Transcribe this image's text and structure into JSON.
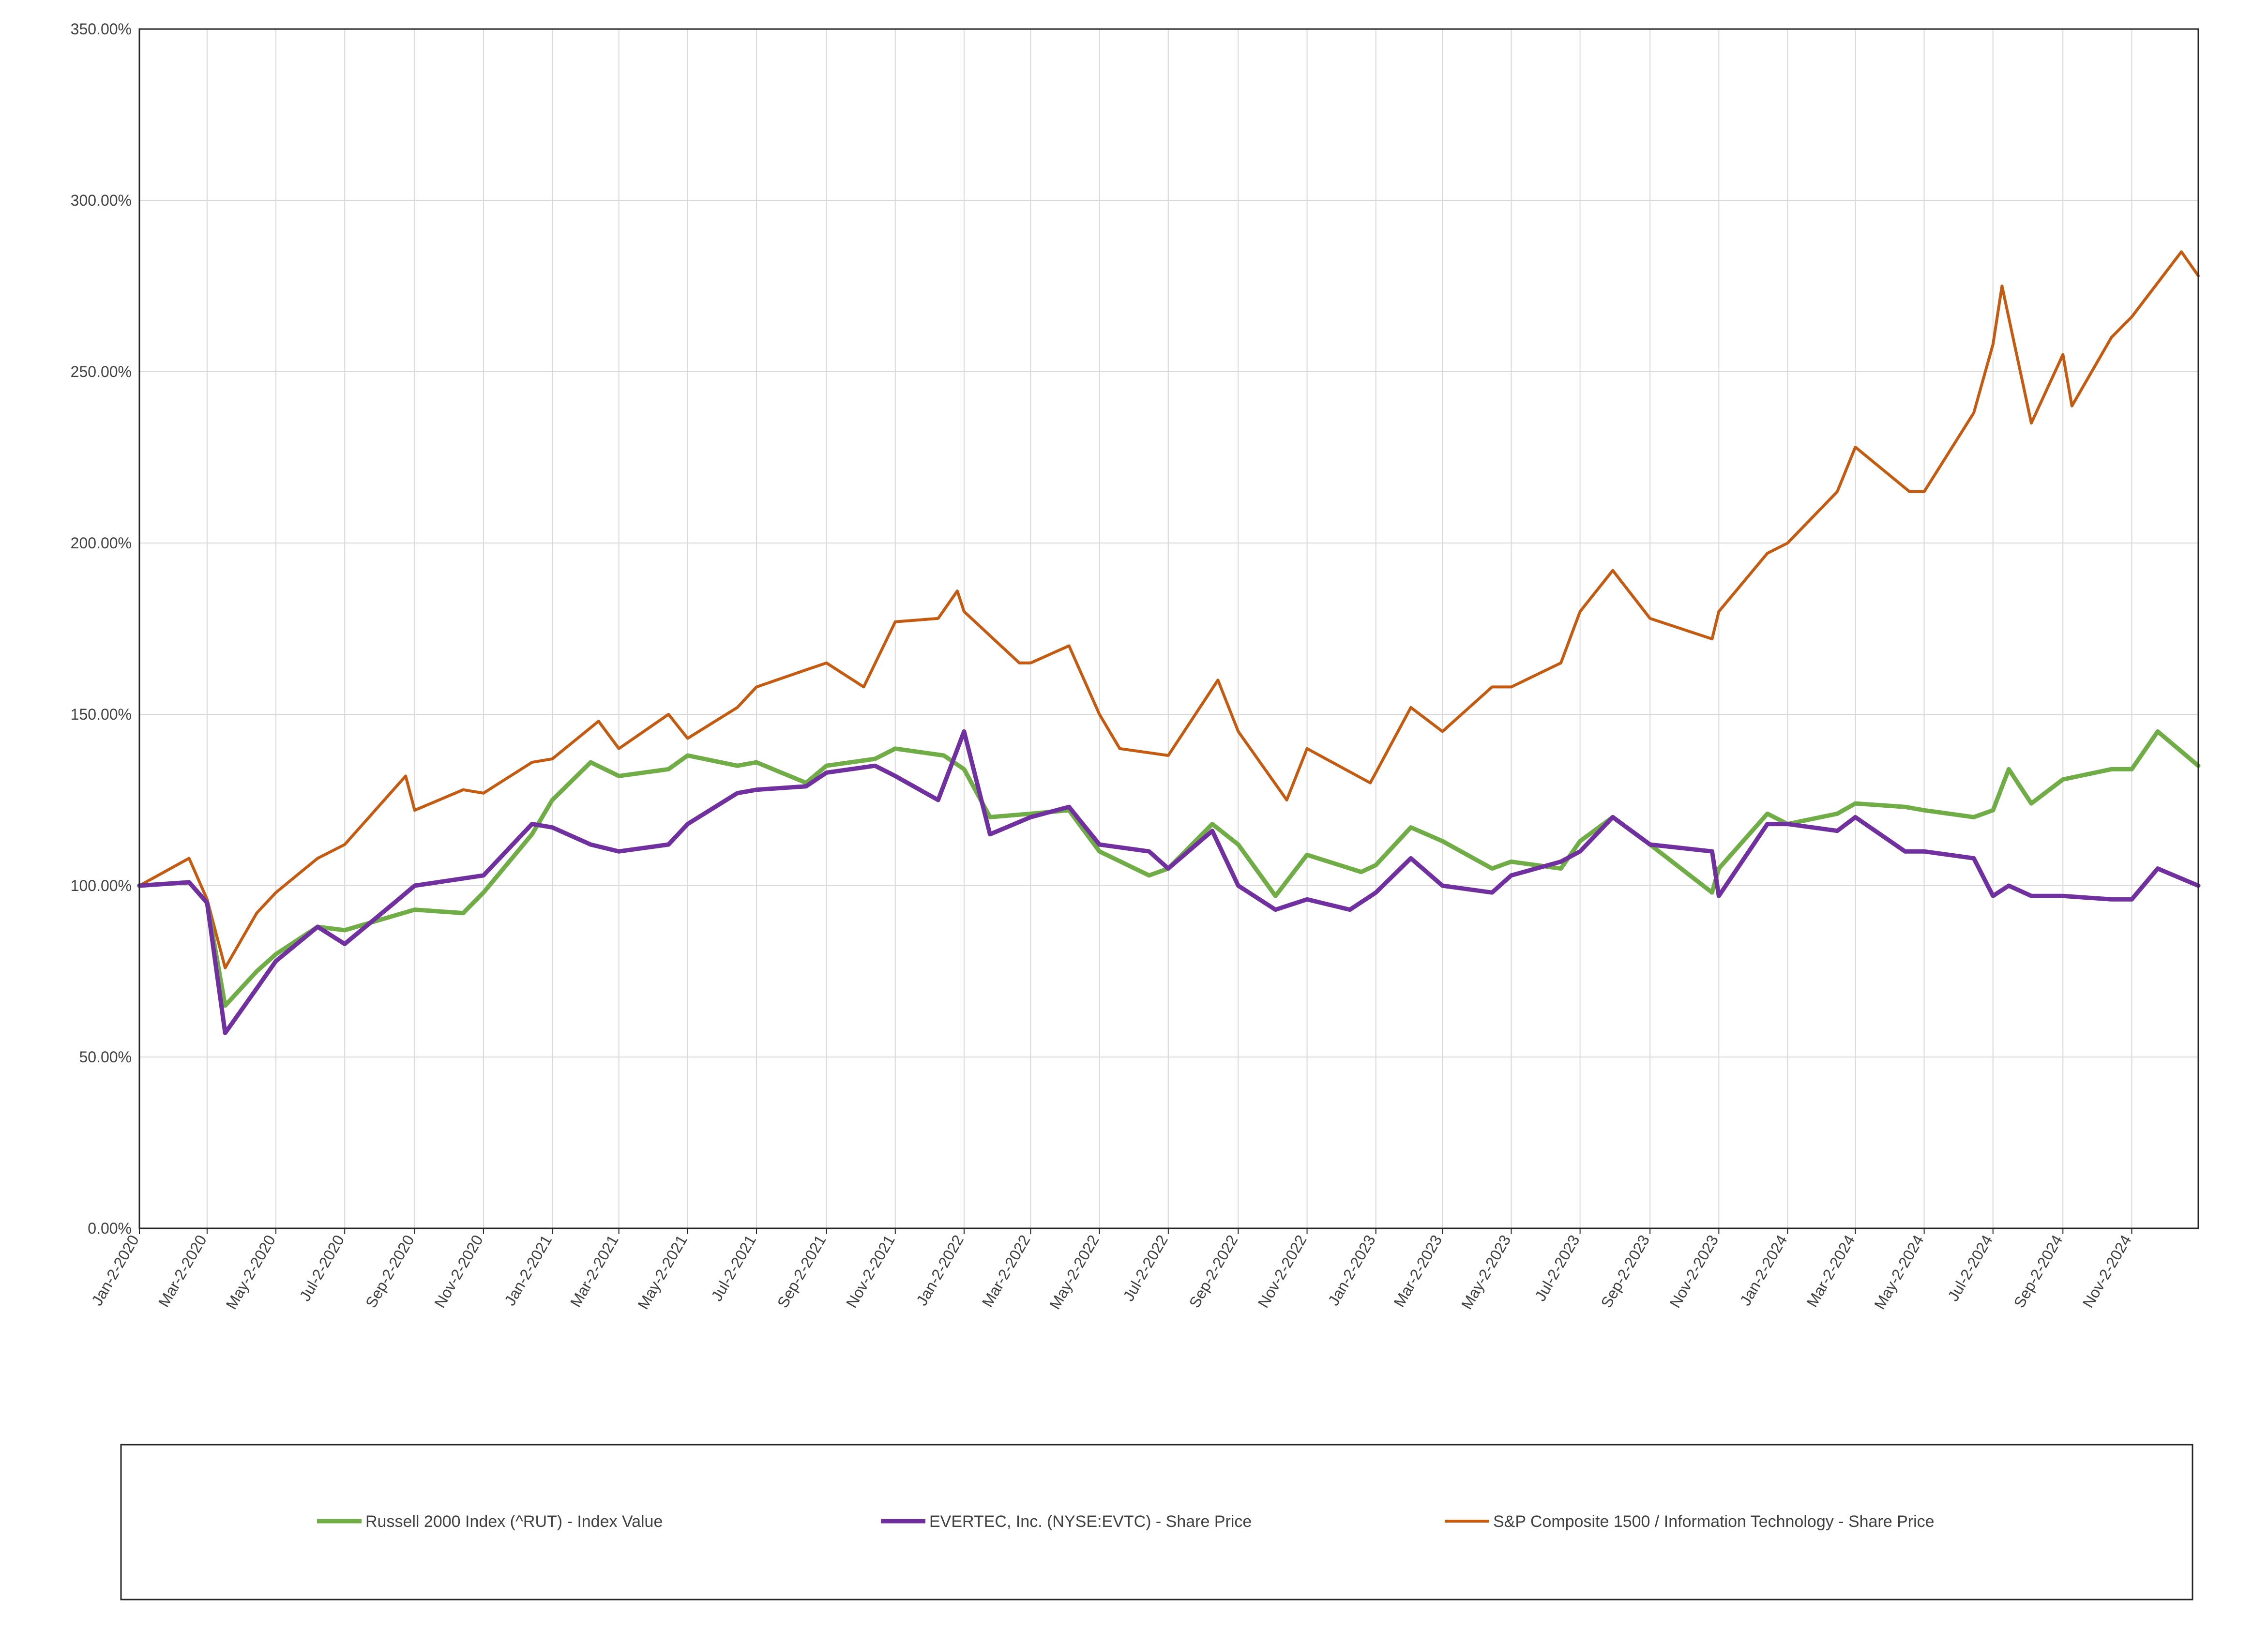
{
  "chart_data": {
    "type": "line",
    "title": "",
    "xlabel": "",
    "ylabel": "",
    "ylim": [
      0,
      350
    ],
    "y_ticks": [
      "0.00%",
      "50.00%",
      "100.00%",
      "150.00%",
      "200.00%",
      "250.00%",
      "300.00%",
      "350.00%"
    ],
    "x_tick_labels": [
      "Jan-2-2020",
      "Mar-2-2020",
      "May-2-2020",
      "Jul-2-2020",
      "Sep-2-2020",
      "Nov-2-2020",
      "Jan-2-2021",
      "Mar-2-2021",
      "May-2-2021",
      "Jul-2-2021",
      "Sep-2-2021",
      "Nov-2-2021",
      "Jan-2-2022",
      "Mar-2-2022",
      "May-2-2022",
      "Jul-2-2022",
      "Sep-2-2022",
      "Nov-2-2022",
      "Jan-2-2023",
      "Mar-2-2023",
      "May-2-2023",
      "Jul-2-2023",
      "Sep-2-2023",
      "Nov-2-2023",
      "Jan-2-2024",
      "Mar-2-2024",
      "May-2-2024",
      "Jul-2-2024",
      "Sep-2-2024",
      "Nov-2-2024"
    ],
    "x_ticks": [
      "2020-01-02",
      "2020-03-02",
      "2020-05-02",
      "2020-07-02",
      "2020-09-02",
      "2020-11-02",
      "2021-01-02",
      "2021-03-02",
      "2021-05-02",
      "2021-07-02",
      "2021-09-02",
      "2021-11-02",
      "2022-01-02",
      "2022-03-02",
      "2022-05-02",
      "2022-07-02",
      "2022-09-02",
      "2022-11-02",
      "2023-01-02",
      "2023-03-02",
      "2023-05-02",
      "2023-07-02",
      "2023-09-02",
      "2023-11-02",
      "2024-01-02",
      "2024-03-02",
      "2024-05-02",
      "2024-07-02",
      "2024-09-02",
      "2024-11-02"
    ],
    "xlim": [
      "2020-01-02",
      "2024-12-31"
    ],
    "grid": true,
    "legend_position": "bottom",
    "series": [
      {
        "name": "Russell 2000 Index (^RUT) - Index Value",
        "color": "#70AD47",
        "x": [
          "2020-01-02",
          "2020-02-15",
          "2020-03-02",
          "2020-03-18",
          "2020-04-15",
          "2020-05-02",
          "2020-06-08",
          "2020-07-02",
          "2020-09-02",
          "2020-10-15",
          "2020-11-02",
          "2020-12-15",
          "2021-01-02",
          "2021-02-05",
          "2021-03-02",
          "2021-04-15",
          "2021-05-02",
          "2021-06-15",
          "2021-07-02",
          "2021-08-15",
          "2021-09-02",
          "2021-10-15",
          "2021-11-02",
          "2021-12-15",
          "2022-01-02",
          "2022-01-25",
          "2022-03-02",
          "2022-04-05",
          "2022-05-02",
          "2022-06-15",
          "2022-07-02",
          "2022-08-10",
          "2022-09-02",
          "2022-10-05",
          "2022-11-02",
          "2022-12-20",
          "2023-01-02",
          "2023-02-02",
          "2023-03-02",
          "2023-04-15",
          "2023-05-02",
          "2023-06-15",
          "2023-07-02",
          "2023-07-31",
          "2023-09-02",
          "2023-10-27",
          "2023-11-02",
          "2023-12-15",
          "2024-01-02",
          "2024-02-15",
          "2024-03-02",
          "2024-04-15",
          "2024-05-02",
          "2024-06-15",
          "2024-07-02",
          "2024-07-16",
          "2024-08-05",
          "2024-09-02",
          "2024-10-15",
          "2024-11-02",
          "2024-11-25",
          "2024-12-31"
        ],
        "values": [
          100,
          101,
          95,
          65,
          75,
          80,
          88,
          87,
          93,
          92,
          98,
          115,
          125,
          136,
          132,
          134,
          138,
          135,
          136,
          130,
          135,
          137,
          140,
          138,
          134,
          120,
          121,
          122,
          110,
          103,
          105,
          118,
          112,
          97,
          109,
          104,
          106,
          117,
          113,
          105,
          107,
          105,
          113,
          120,
          112,
          98,
          105,
          121,
          118,
          121,
          124,
          123,
          122,
          120,
          122,
          134,
          124,
          131,
          134,
          134,
          145,
          135
        ]
      },
      {
        "name": "EVERTEC, Inc. (NYSE:EVTC) - Share Price",
        "color": "#7030A0",
        "x": [
          "2020-01-02",
          "2020-02-15",
          "2020-03-02",
          "2020-03-18",
          "2020-04-15",
          "2020-05-02",
          "2020-06-08",
          "2020-07-02",
          "2020-08-15",
          "2020-09-02",
          "2020-11-02",
          "2020-12-15",
          "2021-01-02",
          "2021-02-05",
          "2021-03-02",
          "2021-04-15",
          "2021-05-02",
          "2021-06-15",
          "2021-07-02",
          "2021-08-15",
          "2021-09-02",
          "2021-10-15",
          "2021-11-02",
          "2021-12-10",
          "2022-01-02",
          "2022-01-25",
          "2022-03-02",
          "2022-04-05",
          "2022-05-02",
          "2022-06-15",
          "2022-07-02",
          "2022-08-10",
          "2022-09-02",
          "2022-10-05",
          "2022-11-02",
          "2022-12-10",
          "2023-01-02",
          "2023-02-02",
          "2023-03-02",
          "2023-04-15",
          "2023-05-02",
          "2023-06-15",
          "2023-07-02",
          "2023-07-31",
          "2023-09-02",
          "2023-10-27",
          "2023-11-02",
          "2023-12-15",
          "2024-01-02",
          "2024-02-15",
          "2024-03-02",
          "2024-04-15",
          "2024-05-02",
          "2024-06-15",
          "2024-07-02",
          "2024-07-16",
          "2024-08-05",
          "2024-09-02",
          "2024-10-15",
          "2024-11-02",
          "2024-11-25",
          "2024-12-31"
        ],
        "values": [
          100,
          101,
          95,
          57,
          70,
          78,
          88,
          83,
          95,
          100,
          103,
          118,
          117,
          112,
          110,
          112,
          118,
          127,
          128,
          129,
          133,
          135,
          132,
          125,
          145,
          115,
          120,
          123,
          112,
          110,
          105,
          116,
          100,
          93,
          96,
          93,
          98,
          108,
          100,
          98,
          103,
          107,
          110,
          120,
          112,
          110,
          97,
          118,
          118,
          116,
          120,
          110,
          110,
          108,
          97,
          100,
          97,
          97,
          96,
          96,
          105,
          100
        ]
      },
      {
        "name": "S&P Composite 1500 / Information Technology - Share Price",
        "color": "#C55A11",
        "x": [
          "2020-01-02",
          "2020-02-15",
          "2020-03-02",
          "2020-03-18",
          "2020-04-15",
          "2020-05-02",
          "2020-06-08",
          "2020-07-02",
          "2020-08-25",
          "2020-09-02",
          "2020-10-15",
          "2020-11-02",
          "2020-12-15",
          "2021-01-02",
          "2021-02-12",
          "2021-03-02",
          "2021-04-15",
          "2021-05-02",
          "2021-06-15",
          "2021-07-02",
          "2021-08-15",
          "2021-09-02",
          "2021-10-05",
          "2021-11-02",
          "2021-12-10",
          "2021-12-27",
          "2022-01-02",
          "2022-02-20",
          "2022-03-02",
          "2022-04-05",
          "2022-05-02",
          "2022-05-20",
          "2022-07-02",
          "2022-08-15",
          "2022-09-02",
          "2022-10-15",
          "2022-11-02",
          "2022-12-28",
          "2023-01-02",
          "2023-02-02",
          "2023-03-02",
          "2023-04-15",
          "2023-05-02",
          "2023-06-15",
          "2023-07-02",
          "2023-07-31",
          "2023-09-02",
          "2023-10-27",
          "2023-11-02",
          "2023-12-15",
          "2024-01-02",
          "2024-02-15",
          "2024-03-02",
          "2024-04-19",
          "2024-05-02",
          "2024-06-15",
          "2024-07-02",
          "2024-07-10",
          "2024-08-05",
          "2024-09-02",
          "2024-09-10",
          "2024-10-15",
          "2024-11-02",
          "2024-12-16",
          "2024-12-31"
        ],
        "values": [
          100,
          108,
          96,
          76,
          92,
          98,
          108,
          112,
          132,
          122,
          128,
          127,
          136,
          137,
          148,
          140,
          150,
          143,
          152,
          158,
          163,
          165,
          158,
          177,
          178,
          186,
          180,
          165,
          165,
          170,
          150,
          140,
          138,
          160,
          145,
          125,
          140,
          130,
          133,
          152,
          145,
          158,
          158,
          165,
          180,
          192,
          178,
          172,
          180,
          197,
          200,
          215,
          228,
          215,
          215,
          238,
          258,
          275,
          235,
          255,
          240,
          260,
          266,
          285,
          278
        ]
      }
    ]
  }
}
